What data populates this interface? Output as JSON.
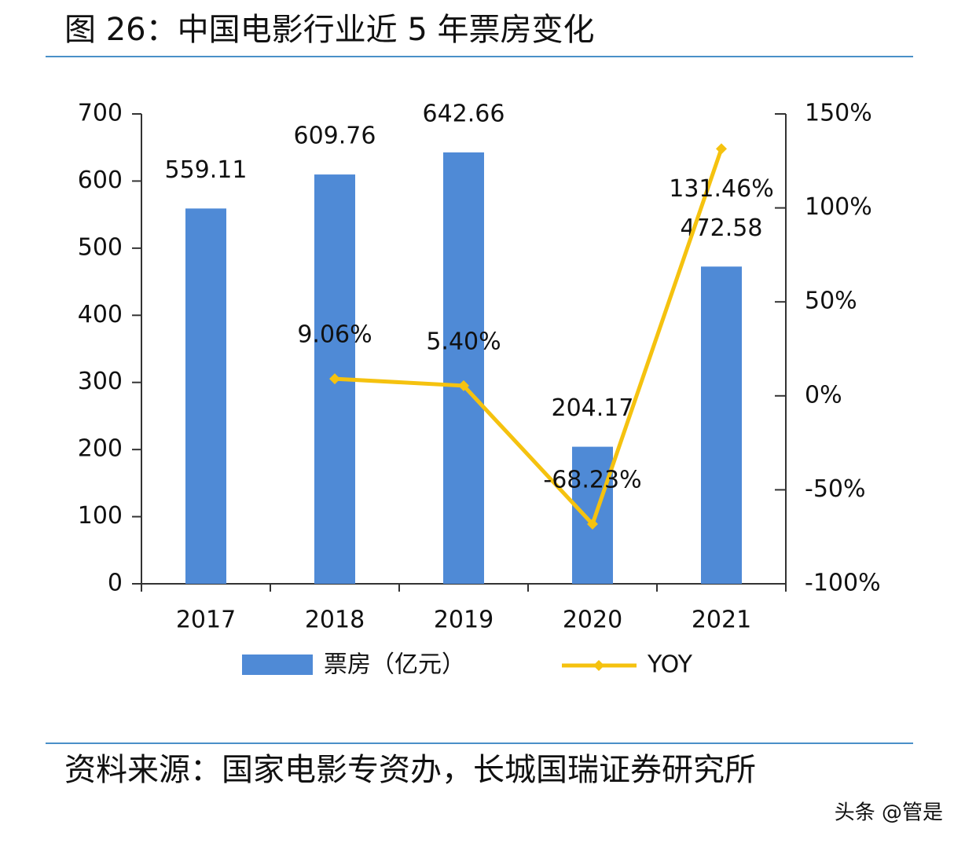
{
  "chart_data": {
    "type": "bar",
    "title": "图 26：中国电影行业近 5 年票房变化",
    "source": "资料来源：国家电影专资办，长城国瑞证券研究所",
    "watermark": "头条 @管是",
    "categories": [
      "2017",
      "2018",
      "2019",
      "2020",
      "2021"
    ],
    "series": [
      {
        "name": "票房（亿元）",
        "color": "#4f8ad6",
        "type": "bar",
        "values": [
          559.11,
          609.76,
          642.66,
          204.17,
          472.58
        ]
      },
      {
        "name": "YOY",
        "color": "#f5c20f",
        "type": "line",
        "axis": "y2",
        "values": [
          null,
          9.06,
          5.4,
          -68.23,
          131.46
        ],
        "value_labels": [
          null,
          "9.06%",
          "5.40%",
          "-68.23%",
          "131.46%"
        ]
      }
    ],
    "ylim": [
      0,
      700
    ],
    "yticks": [
      0,
      100,
      200,
      300,
      400,
      500,
      600,
      700
    ],
    "y2lim": [
      -100,
      150
    ],
    "y2ticks": [
      {
        "value": -100,
        "label": "-100%"
      },
      {
        "value": -50,
        "label": "-50%"
      },
      {
        "value": 0,
        "label": "0%"
      },
      {
        "value": 50,
        "label": "50%"
      },
      {
        "value": 100,
        "label": "100%"
      },
      {
        "value": 150,
        "label": "150%"
      }
    ]
  }
}
